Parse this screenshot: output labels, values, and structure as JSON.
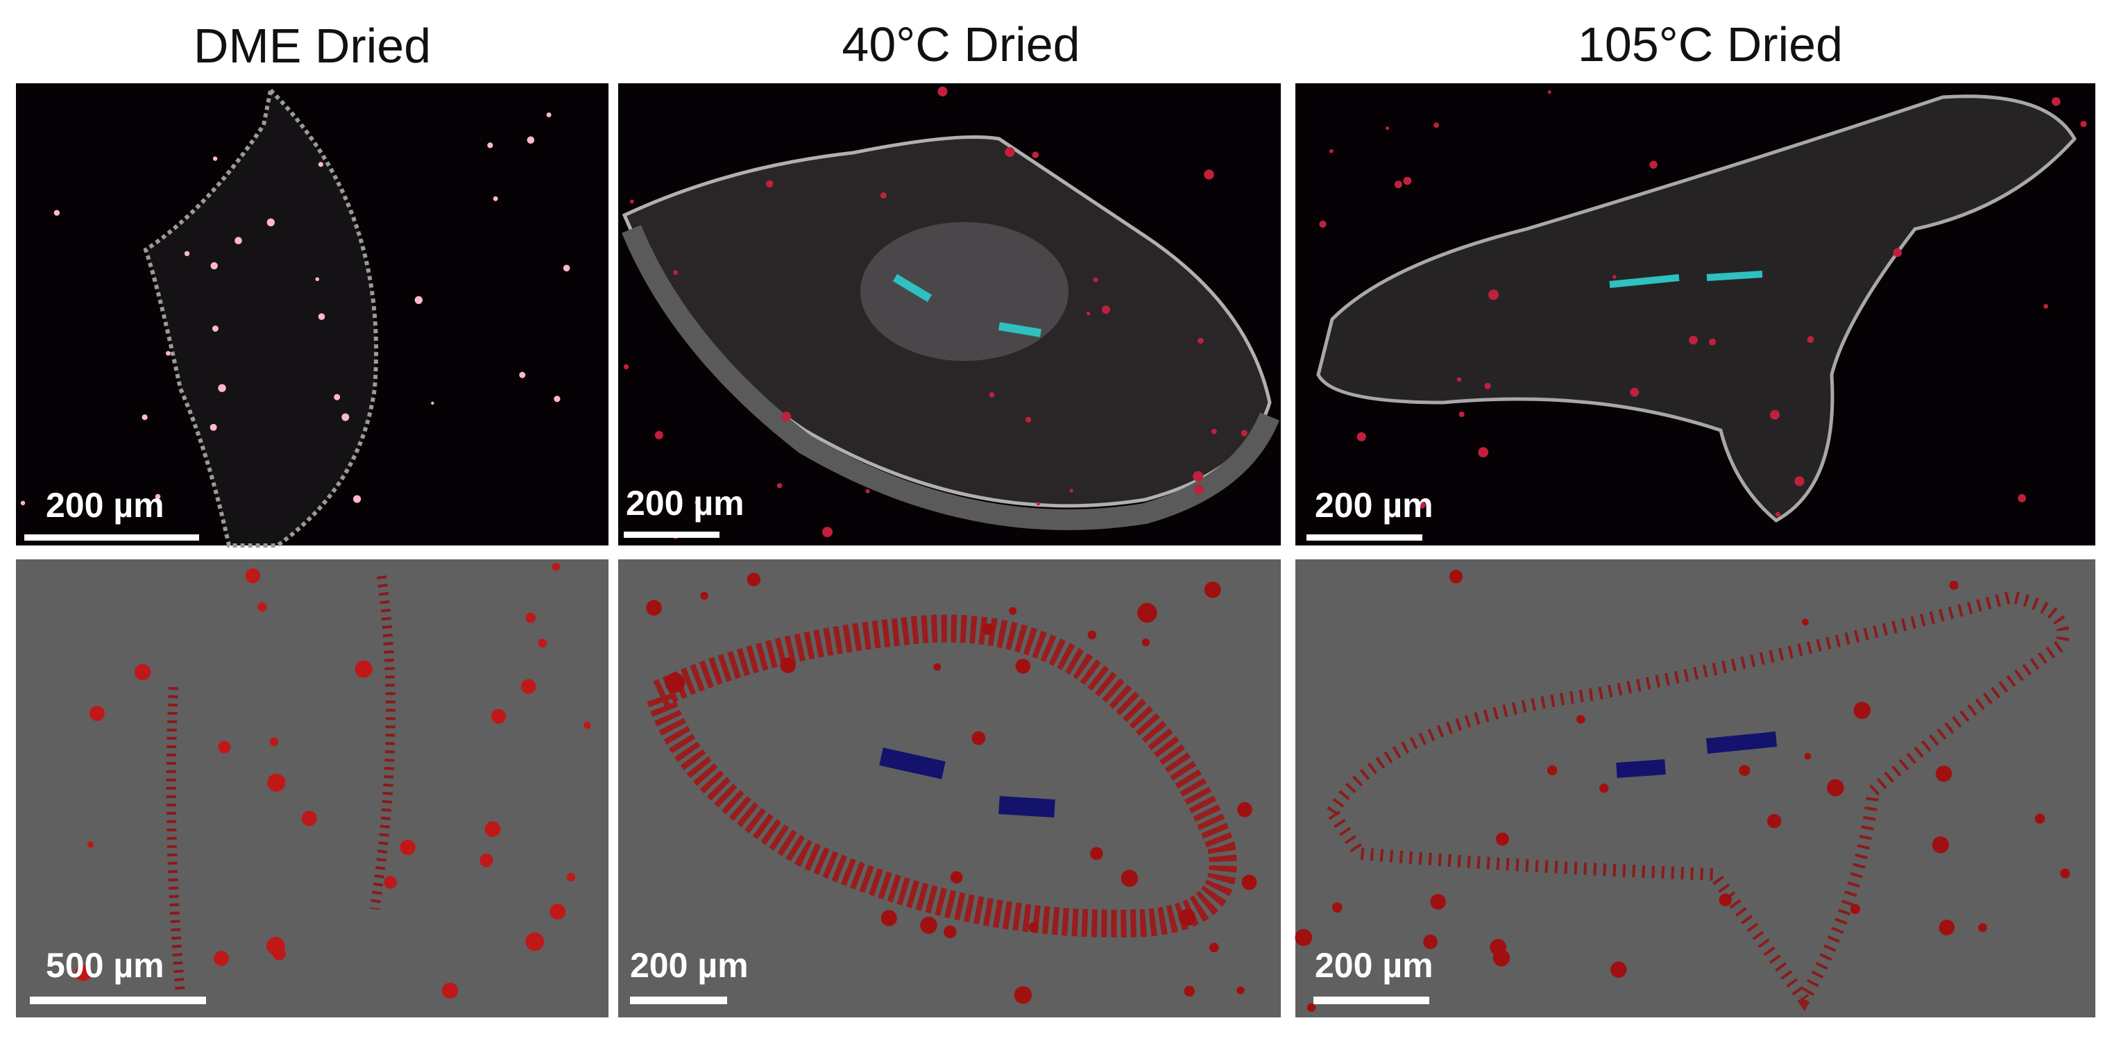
{
  "columns": [
    {
      "title": "DME Dried",
      "top_scale": "200 µm",
      "bottom_scale": "500 µm"
    },
    {
      "title": "40°C Dried",
      "top_scale": "200 µm",
      "bottom_scale": "200 µm"
    },
    {
      "title": "105°C Dried",
      "top_scale": "200 µm",
      "bottom_scale": "200 µm"
    }
  ]
}
